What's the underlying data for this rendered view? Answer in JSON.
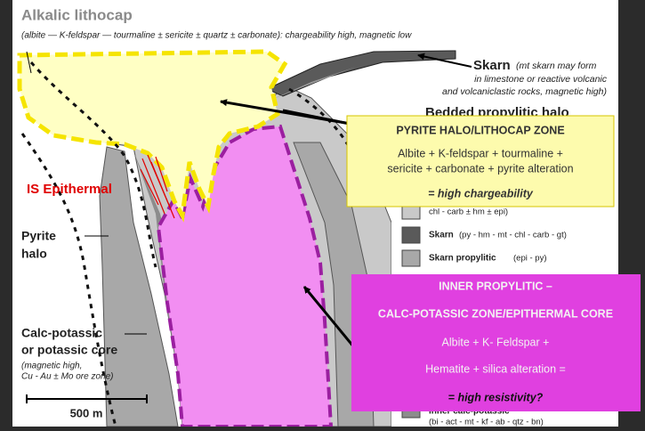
{
  "header": {
    "title": "Alkalic lithocap",
    "subtitle": "(albite — K-feldspar — tourmaline ± sericite ± quartz ± carbonate): chargeability high, magnetic low"
  },
  "skarn_label": {
    "title": "Skarn",
    "lines": [
      "(mt skarn may form",
      "in limestone or reactive volcanic",
      "and volcaniclastic rocks, magnetic high)"
    ]
  },
  "bedded_label": "Bedded propylitic halo",
  "epithermal_label": "IS Epithermal",
  "pyrite_label": [
    "Pyrite",
    "halo"
  ],
  "core_label": {
    "lines": [
      "Calc-potassic",
      "or potassic core"
    ],
    "notes": [
      "(magnetic high,",
      "Cu - Au ± Mo ore zone)"
    ]
  },
  "scale_label": "500 m",
  "legend": {
    "partial": "chl - carb ± hm ± epi)",
    "items": [
      {
        "name": "Skarn",
        "detail": "(py - hm - mt - chl - carb - gt)"
      },
      {
        "name": "Skarn propylitic",
        "detail": "(epi - py)"
      },
      {
        "name": "Inner calc-potassic",
        "detail": "(bi - act - mt - kf - ab - qtz - bn)"
      }
    ]
  },
  "callouts": [
    {
      "title": "PYRITE HALO/LITHOCAP ZONE",
      "lines": [
        "Albite + K-feldspar + tourmaline +",
        "sericite + carbonate + pyrite alteration"
      ],
      "conclusion": "= high chargeability"
    },
    {
      "title": "INNER PROPYLITIC –",
      "subtitle": "CALC-POTASSIC ZONE/EPITHERMAL CORE",
      "lines": [
        "Albite + K- Feldspar +",
        "Hematite + silica alteration ="
      ],
      "conclusion": "= high resistivity?"
    }
  ]
}
